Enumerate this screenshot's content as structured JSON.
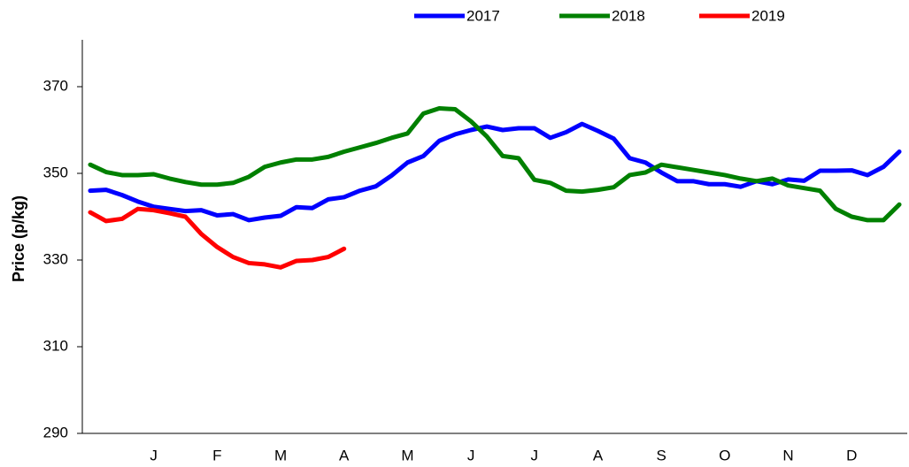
{
  "chart_data": {
    "type": "line",
    "y_label": "Price (p/kg)",
    "categories": [
      null,
      null,
      null,
      null,
      "J",
      null,
      null,
      null,
      "F",
      null,
      null,
      null,
      "M",
      null,
      null,
      null,
      "A",
      null,
      null,
      null,
      "M",
      null,
      null,
      null,
      "J",
      null,
      null,
      null,
      "J",
      null,
      null,
      null,
      "A",
      null,
      null,
      null,
      "S",
      null,
      null,
      null,
      "O",
      null,
      null,
      null,
      "N",
      null,
      null,
      null,
      "D",
      null,
      null,
      null
    ],
    "series": [
      {
        "name": "2017",
        "color": "#0000ff",
        "values": [
          346,
          346.2,
          345,
          343.5,
          342.3,
          341.8,
          341.3,
          341.5,
          340.3,
          340.6,
          339.2,
          339.8,
          340.2,
          342.2,
          342,
          344,
          344.5,
          346,
          347,
          349.5,
          352.5,
          354,
          357.5,
          359,
          360,
          360.8,
          360,
          360.4,
          360.4,
          358.2,
          359.5,
          361.4,
          359.8,
          358,
          353.5,
          352.5,
          350.2,
          348.2,
          348.2,
          347.5,
          347.5,
          346.9,
          348.2,
          347.5,
          348.6,
          348.3,
          350.6,
          350.6,
          350.7,
          349.6,
          351.5,
          355
        ]
      },
      {
        "name": "2018",
        "color": "#008000",
        "values": [
          352,
          350.3,
          349.6,
          349.6,
          349.8,
          348.8,
          348,
          347.4,
          347.4,
          347.8,
          349.2,
          351.5,
          352.5,
          353.2,
          353.2,
          353.8,
          355,
          356,
          357,
          358.2,
          359.2,
          363.8,
          365,
          364.8,
          362,
          358.5,
          354,
          353.5,
          348.5,
          347.8,
          346,
          345.8,
          346.2,
          346.8,
          349.6,
          350.2,
          352,
          351.4,
          350.8,
          350.2,
          349.6,
          348.8,
          348.2,
          348.8,
          347.2,
          346.6,
          346,
          341.8,
          340,
          339.2,
          339.2,
          342.8
        ]
      },
      {
        "name": "2019",
        "color": "#ff0000",
        "values": [
          341,
          339,
          339.5,
          341.8,
          341.5,
          340.8,
          340,
          336,
          333,
          330.7,
          329.3,
          329,
          328.3,
          329.8,
          330,
          330.7,
          332.6,
          null,
          null,
          null,
          null,
          null,
          null,
          null,
          null,
          null,
          null,
          null,
          null,
          null,
          null,
          null,
          null,
          null,
          null,
          null,
          null,
          null,
          null,
          null,
          null,
          null,
          null,
          null,
          null,
          null,
          null,
          null,
          null,
          null,
          null,
          null
        ]
      }
    ],
    "ylim": [
      290,
      380
    ],
    "yticks": [
      290,
      310,
      330,
      350,
      370
    ],
    "grid": false,
    "legend": "top"
  }
}
